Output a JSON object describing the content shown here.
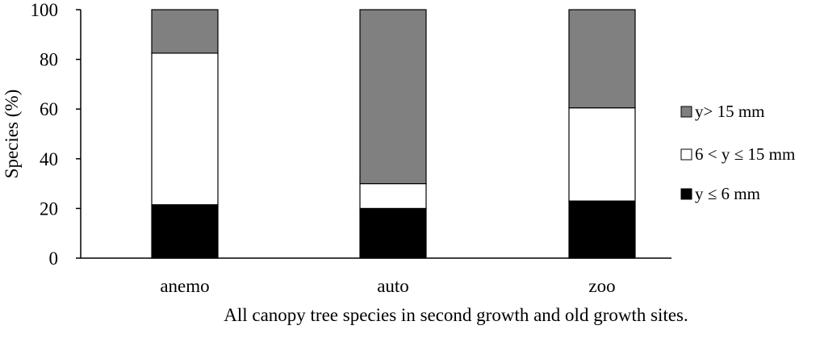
{
  "chart_data": {
    "type": "bar",
    "stacked": true,
    "categories": [
      "anemo",
      "auto",
      "zoo"
    ],
    "series": [
      {
        "name": "y ≤ 6 mm",
        "values": [
          21.5,
          20,
          23
        ],
        "color": "#000000"
      },
      {
        "name": "6 < y ≤ 15 mm",
        "values": [
          61,
          10,
          37.5
        ],
        "color": "#ffffff"
      },
      {
        "name": "y> 15 mm",
        "values": [
          17.5,
          70,
          39.5
        ],
        "color": "#808080"
      }
    ],
    "xlabel": "All canopy tree species in second growth and old growth sites.",
    "ylabel": "Species (%)",
    "ylim": [
      0,
      100
    ],
    "yticks": [
      0,
      20,
      40,
      60,
      80,
      100
    ],
    "grid": false,
    "legend_position": "right"
  }
}
